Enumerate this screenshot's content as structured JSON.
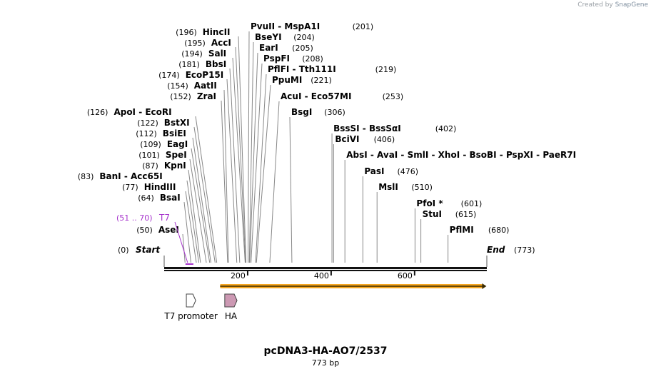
{
  "credit": {
    "prefix": "Created by",
    "brand": "SnapGene"
  },
  "map": {
    "name": "pcDNA3-HA-AO7/2537",
    "length_label": "773 bp",
    "length": 773,
    "ends": [
      {
        "pos": 0,
        "label": "Start"
      },
      {
        "pos": 773,
        "label": "End"
      }
    ],
    "ruler_ticks": [
      "200",
      "400",
      "600"
    ],
    "primer": {
      "name": "T7",
      "range": "(51 .. 70)",
      "start": 51,
      "end": 70,
      "color": "#a633cc"
    },
    "features": [
      {
        "name": "T7 promoter",
        "start": 48,
        "end": 67,
        "type": "promoter",
        "color": "#ffffff"
      },
      {
        "name": "HA",
        "start": 140,
        "end": 166,
        "type": "tag",
        "color": "#cc99b3"
      }
    ],
    "orf": {
      "start": 134,
      "end": 772,
      "color": "#f5a623"
    },
    "sites": [
      {
        "side": "left",
        "pos": 196,
        "names": [
          "HincII"
        ]
      },
      {
        "side": "left",
        "pos": 195,
        "names": [
          "AccI"
        ]
      },
      {
        "side": "left",
        "pos": 194,
        "names": [
          "SalI"
        ]
      },
      {
        "side": "left",
        "pos": 181,
        "names": [
          "BbsI"
        ]
      },
      {
        "side": "left",
        "pos": 174,
        "names": [
          "EcoP15I"
        ]
      },
      {
        "side": "left",
        "pos": 154,
        "names": [
          "AatII"
        ]
      },
      {
        "side": "left",
        "pos": 152,
        "names": [
          "ZraI"
        ]
      },
      {
        "side": "left",
        "pos": 126,
        "names": [
          "ApoI",
          "EcoRI"
        ]
      },
      {
        "side": "left",
        "pos": 122,
        "names": [
          "BstXI"
        ]
      },
      {
        "side": "left",
        "pos": 112,
        "names": [
          "BsiEI"
        ]
      },
      {
        "side": "left",
        "pos": 109,
        "names": [
          "EagI"
        ]
      },
      {
        "side": "left",
        "pos": 101,
        "names": [
          "SpeI"
        ]
      },
      {
        "side": "left",
        "pos": 87,
        "names": [
          "KpnI"
        ]
      },
      {
        "side": "left",
        "pos": 83,
        "names": [
          "BanI",
          "Acc65I"
        ]
      },
      {
        "side": "left",
        "pos": 77,
        "names": [
          "HindIII"
        ]
      },
      {
        "side": "left",
        "pos": 64,
        "names": [
          "BsaI"
        ]
      },
      {
        "side": "left",
        "pos": 50,
        "names": [
          "AseI"
        ]
      },
      {
        "side": "right",
        "pos": 201,
        "names": [
          "PvuII",
          "MspA1I"
        ]
      },
      {
        "side": "right",
        "pos": 204,
        "names": [
          "BseYI"
        ]
      },
      {
        "side": "right",
        "pos": 205,
        "names": [
          "EarI"
        ]
      },
      {
        "side": "right",
        "pos": 208,
        "names": [
          "PspFI"
        ]
      },
      {
        "side": "right",
        "pos": 219,
        "names": [
          "PflFI",
          "Tth111I"
        ]
      },
      {
        "side": "right",
        "pos": 221,
        "names": [
          "PpuMI"
        ]
      },
      {
        "side": "right",
        "pos": 253,
        "names": [
          "AcuI",
          "Eco57MI"
        ]
      },
      {
        "side": "right",
        "pos": 306,
        "names": [
          "BsgI"
        ]
      },
      {
        "side": "right",
        "pos": 402,
        "names": [
          "BssSI",
          "BssSαI"
        ]
      },
      {
        "side": "right",
        "pos": 406,
        "names": [
          "BciVI"
        ]
      },
      {
        "side": "right",
        "pos": 433,
        "names": [
          "AbsI",
          "AvaI",
          "SmlI",
          "XhoI",
          "BsoBI",
          "PspXI",
          "PaeR7I"
        ]
      },
      {
        "side": "right",
        "pos": 476,
        "names": [
          "PasI"
        ]
      },
      {
        "side": "right",
        "pos": 510,
        "names": [
          "MslI"
        ]
      },
      {
        "side": "right",
        "pos": 601,
        "names": [
          "PfoI *"
        ]
      },
      {
        "side": "right",
        "pos": 615,
        "names": [
          "StuI"
        ]
      },
      {
        "side": "right",
        "pos": 680,
        "names": [
          "PflMI"
        ]
      }
    ]
  }
}
